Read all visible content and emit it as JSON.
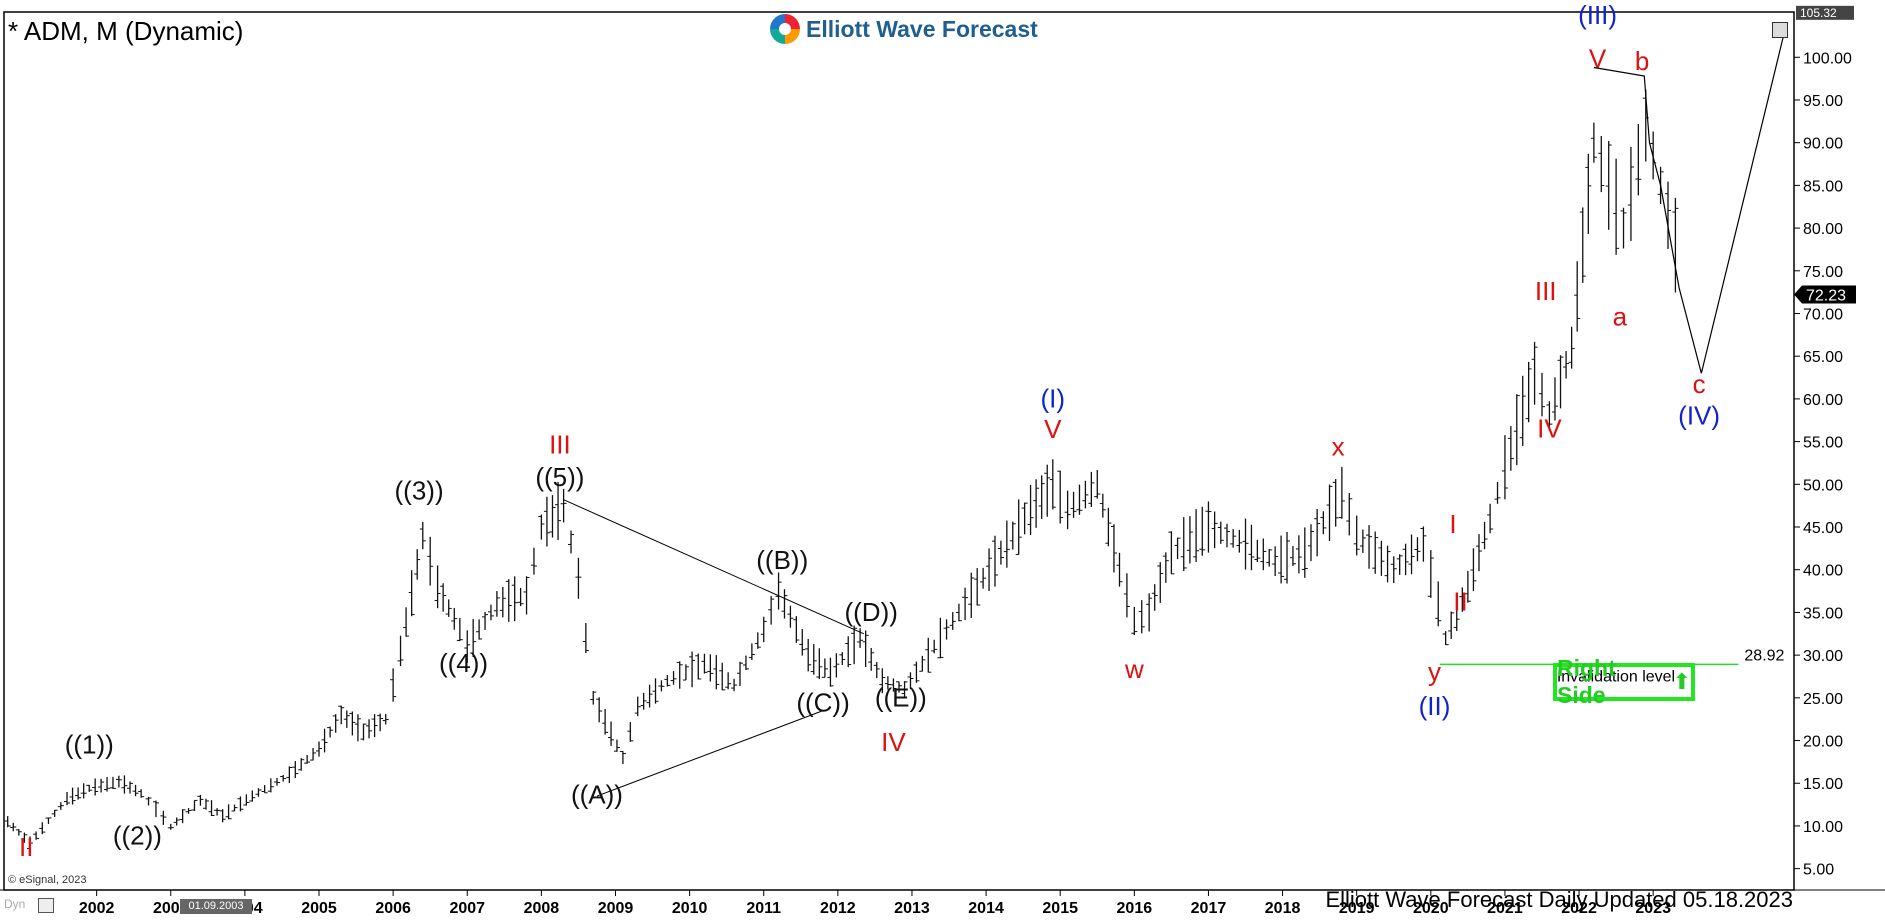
{
  "header": {
    "title": "* ADM, M (Dynamic)",
    "brand": "Elliott Wave Forecast"
  },
  "footer": {
    "updated": "Elliott Wave Forecast Daily Updated 05.18.2023",
    "copyright": "© eSignal, 2023",
    "cursor_date": "01.09.2003",
    "dyn_label": "Dyn"
  },
  "badge": {
    "right_side": "Right Side",
    "arrow": "⬆"
  },
  "colors": {
    "red": "#dd1111",
    "blue": "#1122cc",
    "black": "#111111",
    "green": "#22dd22",
    "bars": "#111111"
  },
  "chart_data": {
    "type": "ohlc-bar",
    "symbol": "ADM",
    "timeframe": "Monthly",
    "x_ticks": [
      "2002",
      "2003",
      "2004",
      "2005",
      "2006",
      "2007",
      "2008",
      "2009",
      "2010",
      "2011",
      "2012",
      "2013",
      "2014",
      "2015",
      "2016",
      "2017",
      "2018",
      "2019",
      "2020",
      "2021",
      "2022",
      "2023"
    ],
    "y_ticks": [
      5,
      10,
      15,
      20,
      25,
      30,
      35,
      40,
      45,
      50,
      55,
      60,
      65,
      70,
      75,
      80,
      85,
      90,
      95,
      100
    ],
    "ylim": [
      2.5,
      105.3
    ],
    "xlim": [
      2000.75,
      2024.9
    ],
    "last_price": "72.23",
    "top_price": "105.32",
    "invalidation": {
      "value": 28.92,
      "label": "28.92",
      "text": "Invalidation level",
      "x_start": 2020.12,
      "x_end": 2024.15
    },
    "price_path": [
      [
        2000.8,
        10.5
      ],
      [
        2001.1,
        8.0
      ],
      [
        2001.6,
        13.2
      ],
      [
        2001.9,
        14.4
      ],
      [
        2002.3,
        15.2
      ],
      [
        2002.6,
        13.8
      ],
      [
        2002.8,
        12.0
      ],
      [
        2003.0,
        9.9
      ],
      [
        2003.4,
        13.0
      ],
      [
        2003.7,
        11.2
      ],
      [
        2004.1,
        13.5
      ],
      [
        2004.6,
        16.0
      ],
      [
        2005.0,
        19.0
      ],
      [
        2005.3,
        23.0
      ],
      [
        2005.6,
        21.0
      ],
      [
        2005.9,
        22.5
      ],
      [
        2006.1,
        30.5
      ],
      [
        2006.4,
        44.0
      ],
      [
        2006.6,
        38.0
      ],
      [
        2006.9,
        33.0
      ],
      [
        2007.0,
        31.0
      ],
      [
        2007.4,
        36.0
      ],
      [
        2007.8,
        37.0
      ],
      [
        2008.0,
        45.0
      ],
      [
        2008.3,
        47.5
      ],
      [
        2008.5,
        39.0
      ],
      [
        2008.7,
        25.0
      ],
      [
        2009.1,
        18.0
      ],
      [
        2009.3,
        24.0
      ],
      [
        2009.7,
        27.0
      ],
      [
        2010.2,
        29.0
      ],
      [
        2010.6,
        26.5
      ],
      [
        2011.0,
        33.0
      ],
      [
        2011.2,
        37.5
      ],
      [
        2011.6,
        30.0
      ],
      [
        2011.9,
        28.0
      ],
      [
        2012.3,
        32.0
      ],
      [
        2012.6,
        27.0
      ],
      [
        2012.9,
        26.0
      ],
      [
        2013.3,
        31.0
      ],
      [
        2013.8,
        37.0
      ],
      [
        2014.2,
        42.0
      ],
      [
        2014.6,
        47.0
      ],
      [
        2014.9,
        50.0
      ],
      [
        2015.1,
        47.0
      ],
      [
        2015.5,
        50.0
      ],
      [
        2015.8,
        40.0
      ],
      [
        2016.0,
        34.0
      ],
      [
        2016.2,
        35.0
      ],
      [
        2016.5,
        42.0
      ],
      [
        2017.0,
        45.0
      ],
      [
        2017.5,
        43.0
      ],
      [
        2017.9,
        41.0
      ],
      [
        2018.3,
        42.0
      ],
      [
        2018.8,
        49.0
      ],
      [
        2019.0,
        44.0
      ],
      [
        2019.5,
        40.0
      ],
      [
        2019.9,
        43.0
      ],
      [
        2020.1,
        36.0
      ],
      [
        2020.2,
        32.0
      ],
      [
        2020.5,
        38.0
      ],
      [
        2020.8,
        46.0
      ],
      [
        2021.0,
        52.0
      ],
      [
        2021.4,
        63.0
      ],
      [
        2021.6,
        58.0
      ],
      [
        2021.9,
        66.0
      ],
      [
        2022.2,
        90.0
      ],
      [
        2022.4,
        85.0
      ],
      [
        2022.6,
        80.0
      ],
      [
        2022.8,
        88.0
      ],
      [
        2022.9,
        92.0
      ],
      [
        2023.1,
        85.0
      ],
      [
        2023.3,
        78.0
      ],
      [
        2023.4,
        72.2
      ]
    ],
    "labels": [
      {
        "text": "II",
        "x": 2001.05,
        "y": 6.5,
        "color": "red"
      },
      {
        "text": "((1))",
        "x": 2001.9,
        "y": 18.5,
        "color": "black"
      },
      {
        "text": "((2))",
        "x": 2002.55,
        "y": 7.8,
        "color": "black"
      },
      {
        "text": "((3))",
        "x": 2006.35,
        "y": 48.2,
        "color": "black"
      },
      {
        "text": "((4))",
        "x": 2006.95,
        "y": 28.0,
        "color": "black"
      },
      {
        "text": "III",
        "x": 2008.25,
        "y": 53.6,
        "color": "red"
      },
      {
        "text": "((5))",
        "x": 2008.25,
        "y": 49.8,
        "color": "black"
      },
      {
        "text": "((A))",
        "x": 2008.75,
        "y": 12.6,
        "color": "black"
      },
      {
        "text": "((B))",
        "x": 2011.25,
        "y": 40.1,
        "color": "black"
      },
      {
        "text": "((C))",
        "x": 2011.8,
        "y": 23.4,
        "color": "black"
      },
      {
        "text": "((D))",
        "x": 2012.45,
        "y": 34.0,
        "color": "black"
      },
      {
        "text": "((E))",
        "x": 2012.85,
        "y": 24.0,
        "color": "black"
      },
      {
        "text": "IV",
        "x": 2012.75,
        "y": 18.8,
        "color": "red"
      },
      {
        "text": "(I)",
        "x": 2014.9,
        "y": 59.0,
        "color": "blue"
      },
      {
        "text": "V",
        "x": 2014.9,
        "y": 55.4,
        "color": "red"
      },
      {
        "text": "w",
        "x": 2016.0,
        "y": 27.3,
        "color": "red"
      },
      {
        "text": "x",
        "x": 2018.75,
        "y": 53.4,
        "color": "red"
      },
      {
        "text": "I",
        "x": 2020.3,
        "y": 44.3,
        "color": "red"
      },
      {
        "text": "II",
        "x": 2020.4,
        "y": 35.2,
        "color": "red"
      },
      {
        "text": "y",
        "x": 2020.05,
        "y": 27.0,
        "color": "red"
      },
      {
        "text": "(II)",
        "x": 2020.05,
        "y": 23.0,
        "color": "blue"
      },
      {
        "text": "III",
        "x": 2021.55,
        "y": 71.6,
        "color": "red"
      },
      {
        "text": "IV",
        "x": 2021.6,
        "y": 55.5,
        "color": "red"
      },
      {
        "text": "(III)",
        "x": 2022.25,
        "y": 103.9,
        "color": "blue"
      },
      {
        "text": "V",
        "x": 2022.25,
        "y": 98.8,
        "color": "red"
      },
      {
        "text": "b",
        "x": 2022.85,
        "y": 98.5,
        "color": "red"
      },
      {
        "text": "a",
        "x": 2022.55,
        "y": 68.6,
        "color": "red"
      },
      {
        "text": "c",
        "x": 2023.62,
        "y": 60.7,
        "color": "red"
      },
      {
        "text": "(IV)",
        "x": 2023.62,
        "y": 57.0,
        "color": "blue"
      }
    ],
    "triangle_lines": [
      [
        [
          2008.3,
          48.2
        ],
        [
          2012.35,
          32.5
        ]
      ],
      [
        [
          2008.75,
          13.5
        ],
        [
          2011.8,
          23.5
        ]
      ]
    ],
    "projection": [
      [
        2022.2,
        98.8
      ],
      [
        2022.88,
        97.8
      ],
      [
        2022.95,
        90.0
      ],
      [
        2023.1,
        85.0
      ],
      [
        2023.35,
        73.0
      ],
      [
        2023.65,
        63.0
      ],
      [
        2024.8,
        104.0
      ]
    ]
  }
}
